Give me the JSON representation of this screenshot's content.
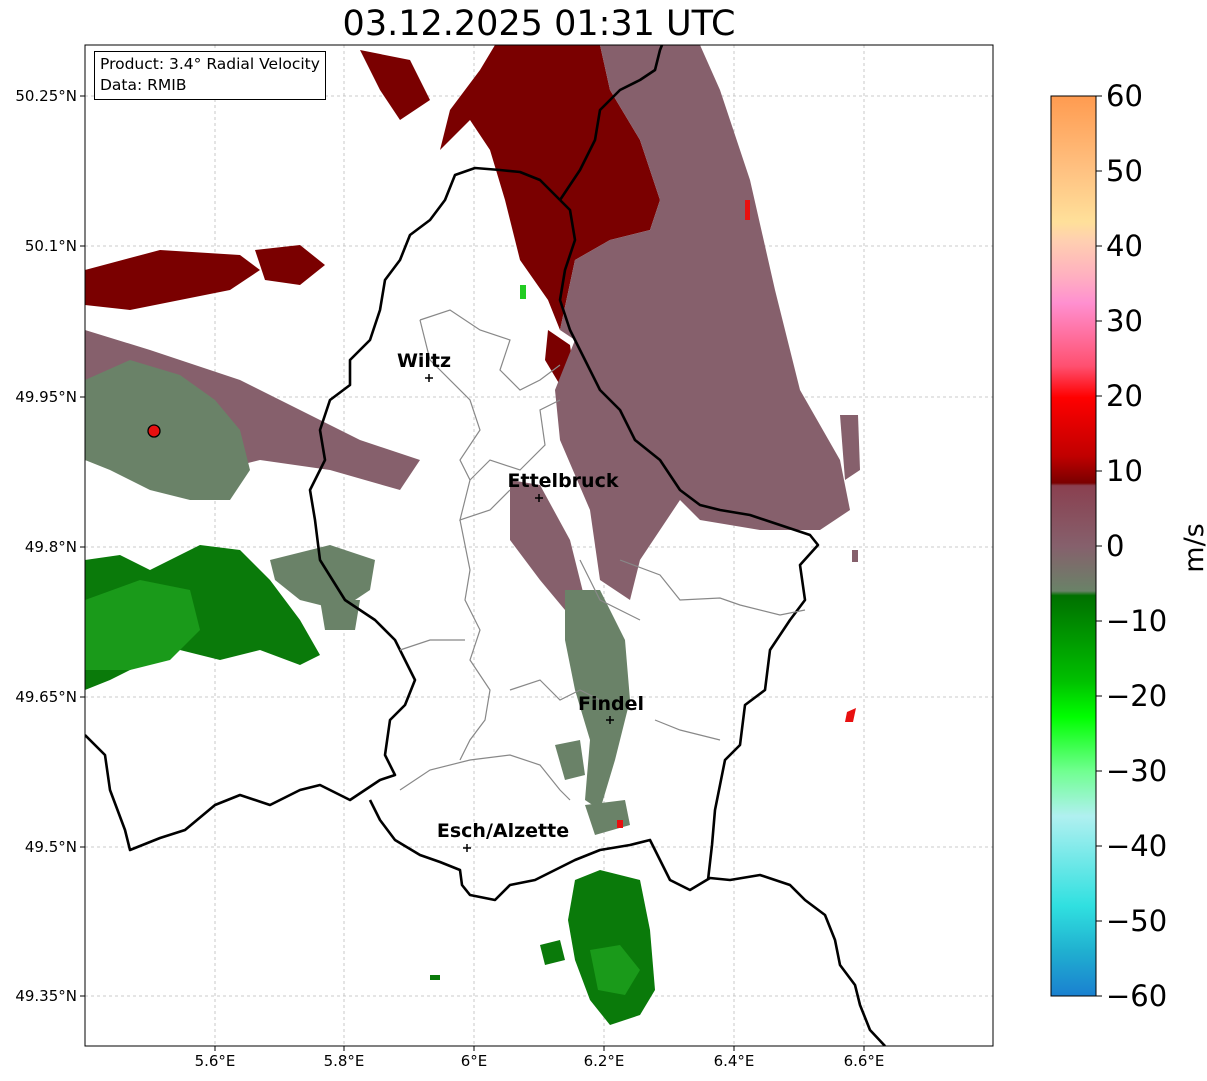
{
  "title": "03.12.2025 01:31 UTC",
  "info": {
    "product": "Product: 3.4° Radial Velocity",
    "data_source": "Data: RMIB"
  },
  "axes": {
    "lat_ticks": [
      "50.25°N",
      "50.1°N",
      "49.95°N",
      "49.8°N",
      "49.65°N",
      "49.5°N",
      "49.35°N"
    ],
    "lon_ticks": [
      "5.6°E",
      "5.8°E",
      "6°E",
      "6.2°E",
      "6.4°E",
      "6.6°E"
    ]
  },
  "cities": [
    {
      "name": "Wiltz"
    },
    {
      "name": "Ettelbruck"
    },
    {
      "name": "Findel"
    },
    {
      "name": "Esch/Alzette"
    }
  ],
  "colorbar": {
    "unit": "m/s",
    "ticks": [
      "60",
      "50",
      "40",
      "30",
      "20",
      "10",
      "0",
      "−10",
      "−20",
      "−30",
      "−40",
      "−50",
      "−60"
    ],
    "range": [
      -60,
      60
    ]
  },
  "colors": {
    "outbound_strong": "#7a0000",
    "outbound_weak": "#86606c",
    "near_zero": "#6a8268",
    "inbound": "#0a7a0a",
    "inbound_strong": "#1a9a1a",
    "radar_site": "#e81010"
  }
}
